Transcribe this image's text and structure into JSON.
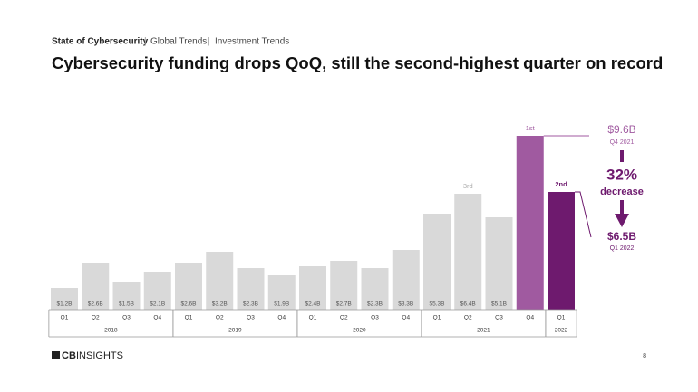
{
  "header": {
    "breadcrumbs": [
      "State of Cybersecurity",
      "Global Trends",
      "Investment Trends"
    ]
  },
  "chart_data": {
    "type": "bar",
    "title": "Cybersecurity funding drops QoQ, still the second-highest quarter on record",
    "categories": [
      "Q1",
      "Q2",
      "Q3",
      "Q4",
      "Q1",
      "Q2",
      "Q3",
      "Q4",
      "Q1",
      "Q2",
      "Q3",
      "Q4",
      "Q1",
      "Q2",
      "Q3",
      "Q4",
      "Q1"
    ],
    "category_years": [
      "2018",
      "2018",
      "2018",
      "2018",
      "2019",
      "2019",
      "2019",
      "2019",
      "2020",
      "2020",
      "2020",
      "2020",
      "2021",
      "2021",
      "2021",
      "2021",
      "2022"
    ],
    "values": [
      1.2,
      2.6,
      1.5,
      2.1,
      2.6,
      3.2,
      2.3,
      1.9,
      2.4,
      2.7,
      2.3,
      3.3,
      5.3,
      6.4,
      5.1,
      9.6,
      6.5
    ],
    "value_labels": [
      "$1.2B",
      "$2.6B",
      "$1.5B",
      "$2.1B",
      "$2.6B",
      "$3.2B",
      "$2.3B",
      "$1.9B",
      "$2.4B",
      "$2.7B",
      "$2.3B",
      "$3.3B",
      "$5.3B",
      "$6.4B",
      "$5.1B",
      "$9.6B",
      "$6.5B"
    ],
    "colors": [
      "#d9d9d9",
      "#d9d9d9",
      "#d9d9d9",
      "#d9d9d9",
      "#d9d9d9",
      "#d9d9d9",
      "#d9d9d9",
      "#d9d9d9",
      "#d9d9d9",
      "#d9d9d9",
      "#d9d9d9",
      "#d9d9d9",
      "#d9d9d9",
      "#d9d9d9",
      "#d9d9d9",
      "#a05aa0",
      "#6e1a6e"
    ],
    "rank_labels": [
      null,
      null,
      null,
      null,
      null,
      null,
      null,
      null,
      null,
      null,
      null,
      null,
      null,
      "3rd",
      null,
      "1st",
      "2nd"
    ],
    "rank_colors": [
      null,
      null,
      null,
      null,
      null,
      null,
      null,
      null,
      null,
      null,
      null,
      null,
      null,
      "#aaaaaa",
      null,
      "#a05aa0",
      "#6e1a6e"
    ],
    "annotation": {
      "from_period": "Q4 2021",
      "to_period": "Q1 2022",
      "change": "32%",
      "change_text": "decrease"
    }
  },
  "footer": {
    "logo": [
      "CB",
      "INSIGHTS"
    ],
    "page": "8"
  }
}
